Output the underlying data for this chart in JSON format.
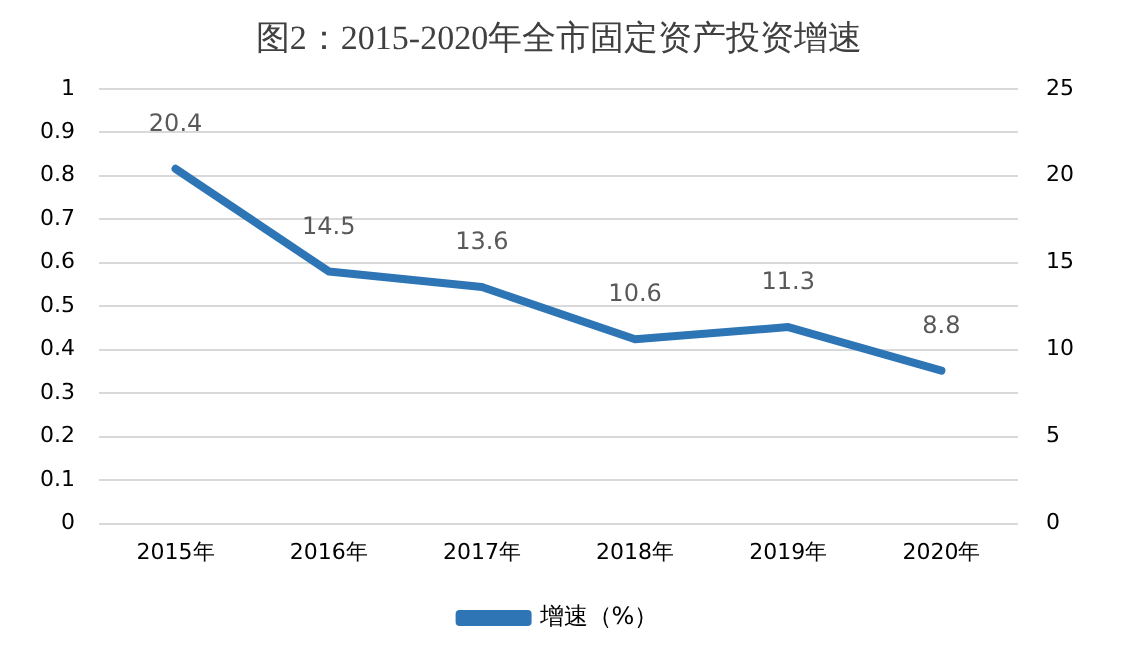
{
  "chart_data": {
    "type": "line",
    "title": "图2：2015-2020年全市固定资产投资增速",
    "categories": [
      "2015年",
      "2016年",
      "2017年",
      "2018年",
      "2019年",
      "2020年"
    ],
    "series": [
      {
        "name": "增速（%）",
        "color": "#2e75b6",
        "axis": "y2",
        "values": [
          20.4,
          14.5,
          13.6,
          10.6,
          11.3,
          8.8
        ]
      }
    ],
    "ylim": [
      0,
      1
    ],
    "yticks": [
      0,
      0.1,
      0.2,
      0.3,
      0.4,
      0.5,
      0.6,
      0.7,
      0.8,
      0.9,
      1
    ],
    "y2lim": [
      0,
      25
    ],
    "y2ticks": [
      0,
      5,
      10,
      15,
      20,
      25
    ],
    "grid": "y",
    "legend": "bottom",
    "data_labels": true,
    "marker": "none",
    "line_style": "solid"
  }
}
